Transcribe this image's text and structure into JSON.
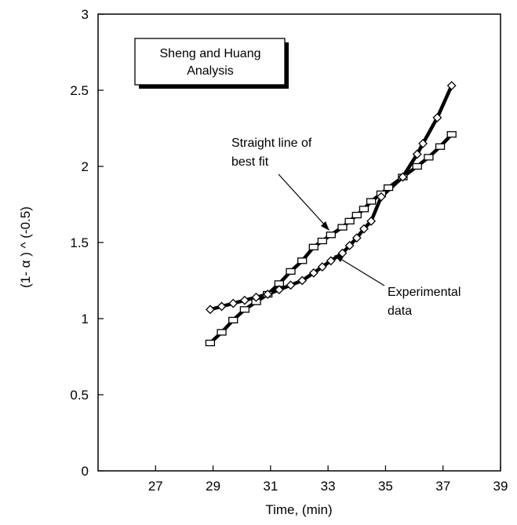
{
  "chart_data": {
    "type": "line",
    "xlabel": "Time,  (min)",
    "ylabel": "(1- α ) ^ (-0.5)",
    "xlim": [
      25,
      39
    ],
    "ylim": [
      0,
      3
    ],
    "xticks": [
      27,
      29,
      31,
      33,
      35,
      37,
      39
    ],
    "yticks": [
      0,
      0.5,
      1,
      1.5,
      2,
      2.5,
      3
    ],
    "xtick_labels": [
      "27",
      "29",
      "31",
      "33",
      "35",
      "37",
      "39"
    ],
    "ytick_labels": [
      "0",
      "0.5",
      "1",
      "1.5",
      "2",
      "2.5",
      "3"
    ],
    "legend_box": {
      "line1": "Sheng and Huang",
      "line2": "Analysis"
    },
    "annotations": [
      {
        "lines": [
          "Straight line of",
          "best fit"
        ]
      },
      {
        "lines": [
          "Experimental",
          "data"
        ]
      }
    ],
    "series": [
      {
        "key": "fit",
        "marker": "square",
        "x": [
          28.9,
          29.3,
          29.7,
          30.1,
          30.5,
          30.9,
          31.3,
          31.7,
          32.1,
          32.5,
          32.8,
          33.1,
          33.5,
          33.75,
          34.0,
          34.25,
          34.5,
          34.85,
          35.1,
          35.6,
          36.1,
          36.5,
          36.9,
          37.3
        ],
        "y": [
          0.84,
          0.91,
          0.99,
          1.06,
          1.11,
          1.16,
          1.23,
          1.31,
          1.38,
          1.47,
          1.51,
          1.55,
          1.6,
          1.64,
          1.68,
          1.72,
          1.77,
          1.82,
          1.86,
          1.93,
          2.0,
          2.06,
          2.13,
          2.21
        ]
      },
      {
        "key": "experimental",
        "marker": "diamond",
        "x": [
          28.9,
          29.3,
          29.7,
          30.1,
          30.5,
          30.9,
          31.3,
          31.7,
          32.1,
          32.5,
          32.8,
          33.1,
          33.5,
          33.75,
          34.0,
          34.25,
          34.5,
          34.85,
          35.6,
          36.1,
          36.3,
          36.8,
          37.3
        ],
        "y": [
          1.06,
          1.08,
          1.1,
          1.12,
          1.14,
          1.16,
          1.19,
          1.22,
          1.25,
          1.3,
          1.34,
          1.38,
          1.43,
          1.48,
          1.53,
          1.59,
          1.64,
          1.8,
          1.93,
          2.08,
          2.15,
          2.32,
          2.53
        ]
      }
    ],
    "colors": {
      "line": "#000000",
      "marker_fill": "#ffffff",
      "background": "#ffffff"
    }
  }
}
